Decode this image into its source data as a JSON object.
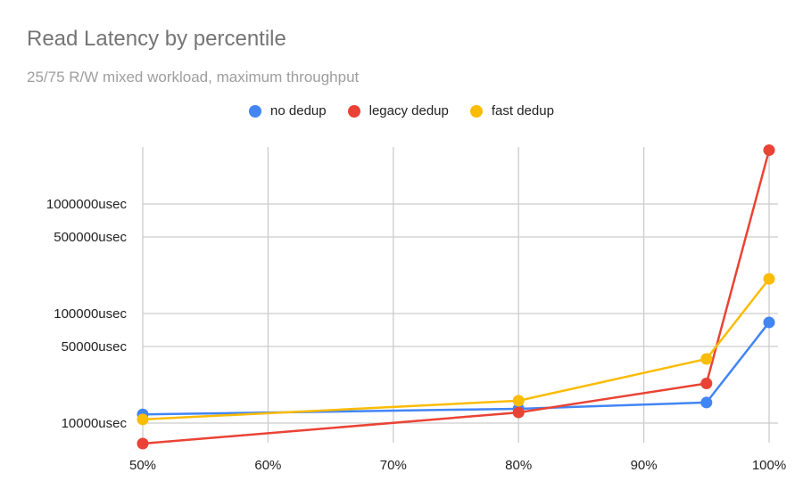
{
  "chart_data": {
    "type": "line",
    "title": "Read Latency by percentile",
    "subtitle": "25/75 R/W mixed workload, maximum throughput",
    "xlabel": "",
    "ylabel": "",
    "y_scale": "log",
    "x_ticks": [
      "50%",
      "60%",
      "70%",
      "80%",
      "90%",
      "100%"
    ],
    "x_tick_values": [
      50,
      60,
      70,
      80,
      90,
      100
    ],
    "y_ticks": [
      "10000usec",
      "50000usec",
      "100000usec",
      "500000usec",
      "1000000usec"
    ],
    "y_tick_values": [
      10000,
      50000,
      100000,
      500000,
      1000000
    ],
    "xlim": [
      50,
      100
    ],
    "ylim": [
      6300,
      3600000
    ],
    "grid": true,
    "legend_position": "top",
    "x": [
      50,
      80,
      95,
      100
    ],
    "series": [
      {
        "name": "no dedup",
        "color": "#4285f4",
        "values": [
          12000,
          13500,
          15400,
          83000
        ]
      },
      {
        "name": "legacy dedup",
        "color": "#ea4335",
        "values": [
          6500,
          12500,
          23000,
          3100000
        ]
      },
      {
        "name": "fast dedup",
        "color": "#fbbc04",
        "values": [
          10800,
          16000,
          38500,
          207000
        ]
      }
    ]
  }
}
